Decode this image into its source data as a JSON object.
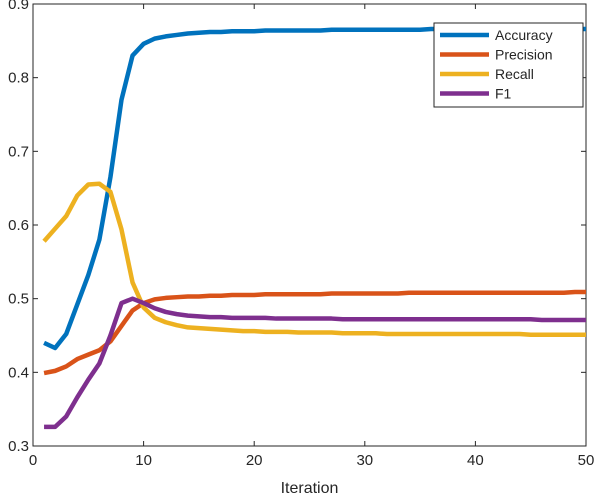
{
  "chart_data": {
    "type": "line",
    "xlabel": "Iteration",
    "ylabel": "",
    "xlim": [
      0,
      50
    ],
    "ylim": [
      0.3,
      0.9
    ],
    "xticks": [
      "0",
      "10",
      "20",
      "30",
      "40",
      "50"
    ],
    "yticks": [
      "0.3",
      "0.4",
      "0.5",
      "0.6",
      "0.7",
      "0.8",
      "0.9"
    ],
    "grid": false,
    "legend_position": "top-right",
    "x": [
      1,
      2,
      3,
      4,
      5,
      6,
      7,
      8,
      9,
      10,
      11,
      12,
      13,
      14,
      15,
      16,
      17,
      18,
      19,
      20,
      21,
      22,
      23,
      24,
      25,
      26,
      27,
      28,
      29,
      30,
      31,
      32,
      33,
      34,
      35,
      36,
      37,
      38,
      39,
      40,
      41,
      42,
      43,
      44,
      45,
      46,
      47,
      48,
      49,
      50
    ],
    "series": [
      {
        "name": "Accuracy",
        "color": "#0072BD",
        "values": [
          0.44,
          0.433,
          0.452,
          0.492,
          0.532,
          0.58,
          0.665,
          0.77,
          0.83,
          0.846,
          0.853,
          0.856,
          0.858,
          0.86,
          0.861,
          0.862,
          0.862,
          0.863,
          0.863,
          0.863,
          0.864,
          0.864,
          0.864,
          0.864,
          0.864,
          0.864,
          0.865,
          0.865,
          0.865,
          0.865,
          0.865,
          0.865,
          0.865,
          0.865,
          0.865,
          0.866,
          0.866,
          0.866,
          0.866,
          0.866,
          0.866,
          0.866,
          0.866,
          0.866,
          0.866,
          0.866,
          0.866,
          0.866,
          0.866,
          0.866
        ]
      },
      {
        "name": "Precision",
        "color": "#D95319",
        "values": [
          0.399,
          0.402,
          0.408,
          0.418,
          0.424,
          0.43,
          0.442,
          0.463,
          0.484,
          0.494,
          0.499,
          0.501,
          0.502,
          0.503,
          0.503,
          0.504,
          0.504,
          0.505,
          0.505,
          0.505,
          0.506,
          0.506,
          0.506,
          0.506,
          0.506,
          0.506,
          0.507,
          0.507,
          0.507,
          0.507,
          0.507,
          0.507,
          0.507,
          0.508,
          0.508,
          0.508,
          0.508,
          0.508,
          0.508,
          0.508,
          0.508,
          0.508,
          0.508,
          0.508,
          0.508,
          0.508,
          0.508,
          0.508,
          0.509,
          0.509
        ]
      },
      {
        "name": "Recall",
        "color": "#EDB120",
        "values": [
          0.578,
          0.595,
          0.612,
          0.64,
          0.655,
          0.656,
          0.645,
          0.594,
          0.522,
          0.488,
          0.474,
          0.468,
          0.464,
          0.461,
          0.46,
          0.459,
          0.458,
          0.457,
          0.456,
          0.456,
          0.455,
          0.455,
          0.455,
          0.454,
          0.454,
          0.454,
          0.454,
          0.453,
          0.453,
          0.453,
          0.453,
          0.452,
          0.452,
          0.452,
          0.452,
          0.452,
          0.452,
          0.452,
          0.452,
          0.452,
          0.452,
          0.452,
          0.452,
          0.452,
          0.451,
          0.451,
          0.451,
          0.451,
          0.451,
          0.451
        ]
      },
      {
        "name": "F1",
        "color": "#7E2F8E",
        "values": [
          0.326,
          0.326,
          0.34,
          0.366,
          0.39,
          0.412,
          0.45,
          0.494,
          0.5,
          0.494,
          0.487,
          0.482,
          0.479,
          0.477,
          0.476,
          0.475,
          0.475,
          0.474,
          0.474,
          0.474,
          0.474,
          0.473,
          0.473,
          0.473,
          0.473,
          0.473,
          0.473,
          0.472,
          0.472,
          0.472,
          0.472,
          0.472,
          0.472,
          0.472,
          0.472,
          0.472,
          0.472,
          0.472,
          0.472,
          0.472,
          0.472,
          0.472,
          0.472,
          0.472,
          0.472,
          0.471,
          0.471,
          0.471,
          0.471,
          0.471
        ]
      }
    ]
  }
}
